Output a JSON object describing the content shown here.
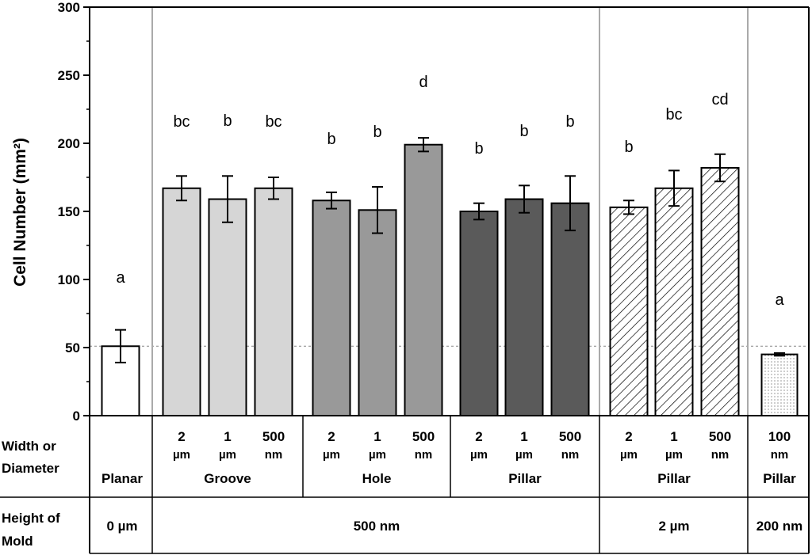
{
  "chart_data": {
    "type": "bar",
    "ylabel": "Cell Number (mm²)",
    "ylim": [
      0,
      300
    ],
    "yticks": [
      "0",
      "50",
      "100",
      "150",
      "200",
      "250",
      "300"
    ],
    "reference_line": 51,
    "bars": [
      {
        "id": "planar",
        "value": 51,
        "error": 12,
        "letter": "a",
        "fill": "white"
      },
      {
        "id": "groove-2um",
        "value": 167,
        "error": 9,
        "letter": "bc",
        "fill": "#d6d6d6"
      },
      {
        "id": "groove-1um",
        "value": 159,
        "error": 17,
        "letter": "b",
        "fill": "#d6d6d6"
      },
      {
        "id": "groove-500nm",
        "value": 167,
        "error": 8,
        "letter": "bc",
        "fill": "#d6d6d6"
      },
      {
        "id": "hole-2um",
        "value": 158,
        "error": 6,
        "letter": "b",
        "fill": "#999999"
      },
      {
        "id": "hole-1um",
        "value": 151,
        "error": 17,
        "letter": "b",
        "fill": "#999999"
      },
      {
        "id": "hole-500nm",
        "value": 199,
        "error": 5,
        "letter": "d",
        "fill": "#999999"
      },
      {
        "id": "pillar-2um",
        "value": 150,
        "error": 6,
        "letter": "b",
        "fill": "#5a5a5a"
      },
      {
        "id": "pillar-1um",
        "value": 159,
        "error": 10,
        "letter": "b",
        "fill": "#5a5a5a"
      },
      {
        "id": "pillar-500nm",
        "value": 156,
        "error": 20,
        "letter": "b",
        "fill": "#5a5a5a"
      },
      {
        "id": "pillar2-2um",
        "value": 153,
        "error": 5,
        "letter": "b",
        "fill": "hatch"
      },
      {
        "id": "pillar2-1um",
        "value": 167,
        "error": 13,
        "letter": "bc",
        "fill": "hatch"
      },
      {
        "id": "pillar2-500nm",
        "value": 182,
        "error": 10,
        "letter": "cd",
        "fill": "hatch"
      },
      {
        "id": "pillar-100nm",
        "value": 45,
        "error": 1,
        "letter": "a",
        "fill": "dots"
      }
    ]
  },
  "table": {
    "row1_label": [
      "Width or",
      "Diameter"
    ],
    "row2_label": [
      "Height of",
      "Mold"
    ],
    "sizes": [
      {
        "top": "2",
        "bottom": "µm"
      },
      {
        "top": "1",
        "bottom": "µm"
      },
      {
        "top": "500",
        "bottom": "nm"
      },
      {
        "top": "2",
        "bottom": "µm"
      },
      {
        "top": "1",
        "bottom": "µm"
      },
      {
        "top": "500",
        "bottom": "nm"
      },
      {
        "top": "2",
        "bottom": "µm"
      },
      {
        "top": "1",
        "bottom": "µm"
      },
      {
        "top": "500",
        "bottom": "nm"
      },
      {
        "top": "2",
        "bottom": "µm"
      },
      {
        "top": "1",
        "bottom": "µm"
      },
      {
        "top": "500",
        "bottom": "nm"
      },
      {
        "top": "100",
        "bottom": "nm"
      }
    ],
    "groups": [
      "Planar",
      "Groove",
      "Hole",
      "Pillar",
      "Pillar",
      "Pillar"
    ],
    "heights": [
      "0 µm",
      "500 nm",
      "2 µm",
      "200 nm"
    ]
  },
  "colors": {
    "axis": "#000000",
    "separator": "#aaaaaa",
    "reference": "#888888"
  }
}
